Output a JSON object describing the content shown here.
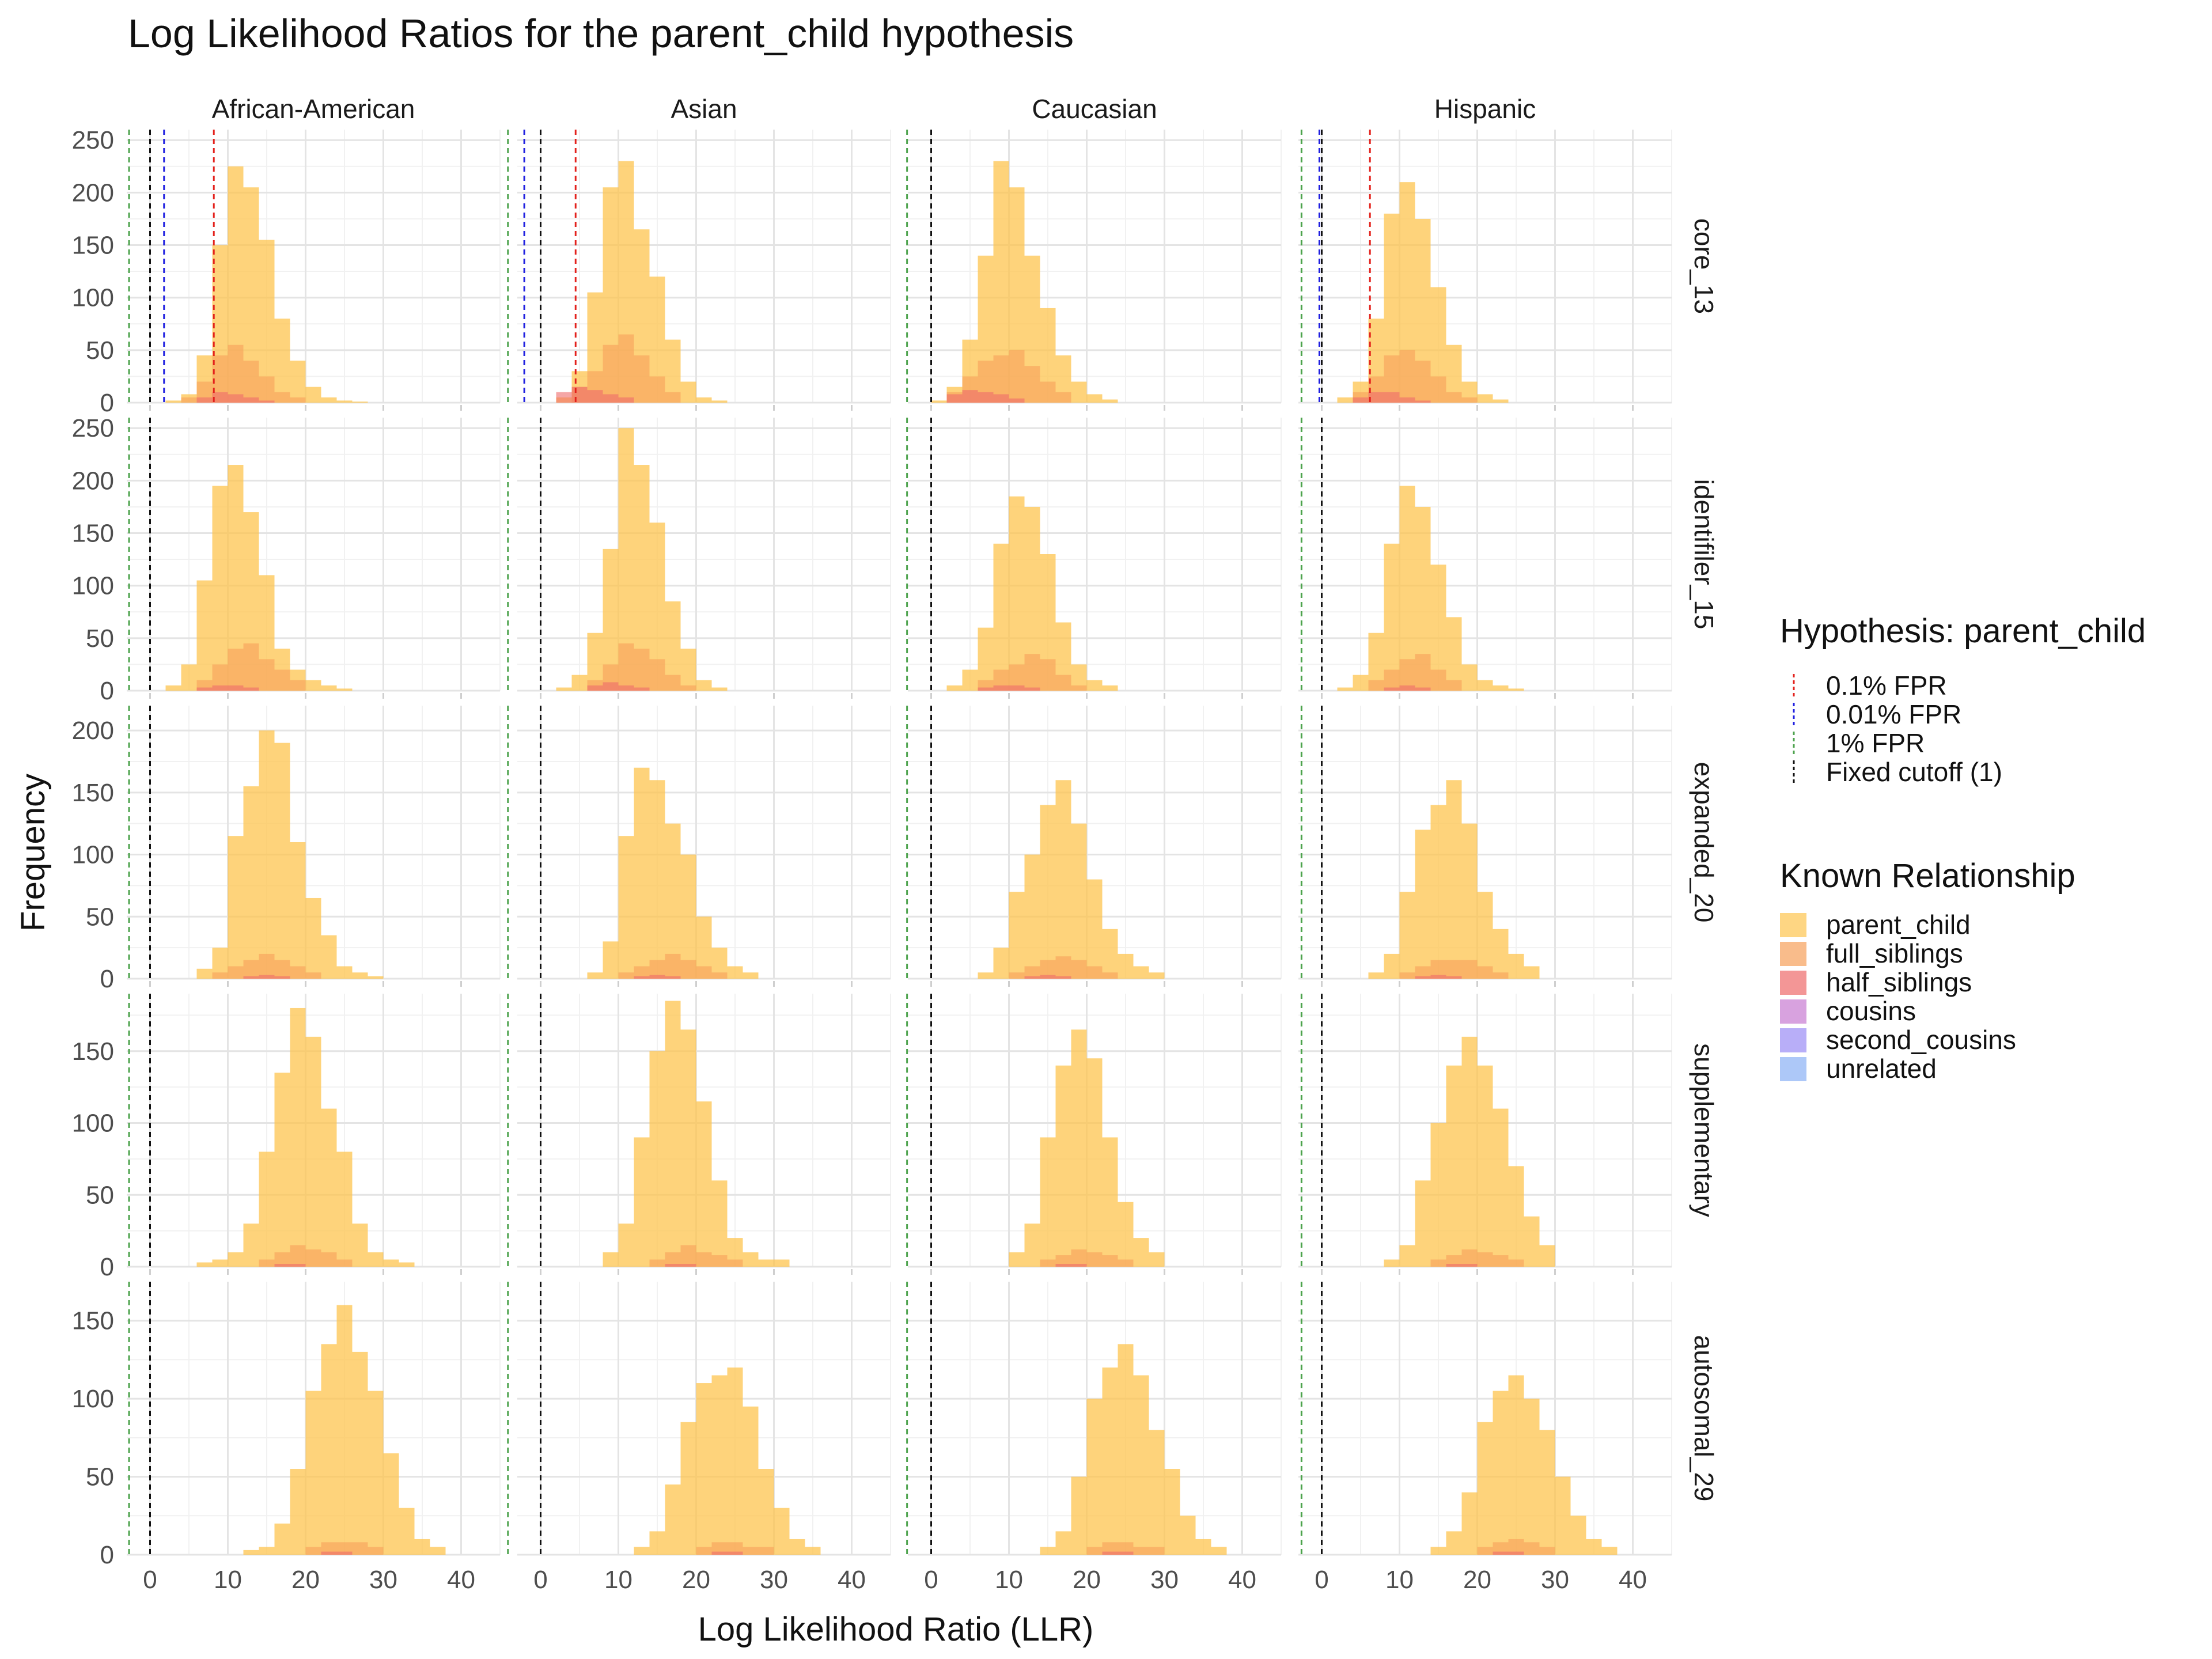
{
  "title": "Log Likelihood Ratios for the parent_child hypothesis",
  "chart_data": {
    "type": "histogram-facet",
    "title": "Log Likelihood Ratios for the parent_child hypothesis",
    "xlabel": "Log Likelihood Ratio (LLR)",
    "ylabel": "Frequency",
    "xlim": [
      -3,
      45
    ],
    "x_ticks": [
      0,
      10,
      20,
      30,
      40
    ],
    "bin_width": 2,
    "columns": [
      "African-American",
      "Asian",
      "Caucasian",
      "Hispanic"
    ],
    "rows": [
      "core_13",
      "identifiler_15",
      "expanded_20",
      "supplementary",
      "autosomal_29"
    ],
    "row_ylim": {
      "core_13": [
        0,
        260
      ],
      "identifiler_15": [
        0,
        260
      ],
      "expanded_20": [
        0,
        220
      ],
      "supplementary": [
        0,
        190
      ],
      "autosomal_29": [
        0,
        175
      ]
    },
    "row_y_ticks": {
      "core_13": [
        0,
        50,
        100,
        150,
        200,
        250
      ],
      "identifiler_15": [
        0,
        50,
        100,
        150,
        200,
        250
      ],
      "expanded_20": [
        0,
        50,
        100,
        150,
        200
      ],
      "supplementary": [
        0,
        50,
        100,
        150
      ],
      "autosomal_29": [
        0,
        50,
        100,
        150
      ]
    },
    "relationships": [
      {
        "name": "parent_child",
        "color": "#FDC44F"
      },
      {
        "name": "full_siblings",
        "color": "#F7A05A"
      },
      {
        "name": "half_siblings",
        "color": "#EE6A6A"
      },
      {
        "name": "cousins",
        "color": "#C77BD2"
      },
      {
        "name": "second_cousins",
        "color": "#9A8CF5"
      },
      {
        "name": "unrelated",
        "color": "#8AB0F5"
      }
    ],
    "histograms": {
      "parent_child": {
        "core_13": {
          "African-American": {
            "start": 2,
            "counts": [
              2,
              8,
              45,
              150,
              225,
              205,
              155,
              80,
              40,
              15,
              5,
              2,
              1
            ]
          },
          "Asian": {
            "start": 2,
            "counts": [
              5,
              30,
              105,
              205,
              230,
              165,
              120,
              60,
              20,
              5,
              2
            ]
          },
          "Caucasian": {
            "start": 0,
            "counts": [
              2,
              15,
              60,
              140,
              230,
              205,
              140,
              90,
              45,
              20,
              8,
              3
            ]
          },
          "Hispanic": {
            "start": 2,
            "counts": [
              5,
              20,
              80,
              180,
              210,
              175,
              110,
              55,
              20,
              8,
              3
            ]
          }
        },
        "identifiler_15": {
          "African-American": {
            "start": 2,
            "counts": [
              5,
              25,
              105,
              195,
              215,
              170,
              110,
              40,
              20,
              10,
              5,
              2
            ]
          },
          "Asian": {
            "start": 2,
            "counts": [
              3,
              15,
              55,
              135,
              250,
              215,
              160,
              85,
              40,
              10,
              3
            ]
          },
          "Caucasian": {
            "start": 2,
            "counts": [
              5,
              20,
              60,
              140,
              185,
              175,
              130,
              65,
              25,
              10,
              5
            ]
          },
          "Hispanic": {
            "start": 2,
            "counts": [
              3,
              15,
              55,
              140,
              195,
              175,
              120,
              70,
              25,
              10,
              5,
              2
            ]
          }
        },
        "expanded_20": {
          "African-American": {
            "start": 6,
            "counts": [
              8,
              25,
              115,
              155,
              200,
              190,
              110,
              65,
              35,
              10,
              5,
              2
            ]
          },
          "Asian": {
            "start": 6,
            "counts": [
              5,
              30,
              115,
              170,
              160,
              125,
              100,
              50,
              25,
              10,
              5
            ]
          },
          "Caucasian": {
            "start": 6,
            "counts": [
              5,
              25,
              70,
              100,
              140,
              160,
              125,
              80,
              40,
              20,
              10,
              5
            ]
          },
          "Hispanic": {
            "start": 6,
            "counts": [
              5,
              20,
              70,
              120,
              140,
              160,
              125,
              70,
              40,
              20,
              10
            ]
          }
        },
        "supplementary": {
          "African-American": {
            "start": 6,
            "counts": [
              3,
              5,
              10,
              30,
              80,
              135,
              180,
              160,
              110,
              80,
              30,
              10,
              5,
              3
            ]
          },
          "Asian": {
            "start": 8,
            "counts": [
              10,
              30,
              90,
              150,
              185,
              165,
              115,
              60,
              20,
              10,
              5,
              5
            ]
          },
          "Caucasian": {
            "start": 10,
            "counts": [
              10,
              30,
              90,
              140,
              165,
              145,
              90,
              45,
              20,
              10
            ]
          },
          "Hispanic": {
            "start": 8,
            "counts": [
              5,
              15,
              60,
              100,
              140,
              160,
              140,
              110,
              70,
              35,
              15
            ]
          }
        },
        "autosomal_29": {
          "African-American": {
            "start": 12,
            "counts": [
              3,
              5,
              20,
              55,
              105,
              135,
              160,
              130,
              105,
              65,
              30,
              10,
              5
            ]
          },
          "Asian": {
            "start": 12,
            "counts": [
              5,
              15,
              45,
              85,
              110,
              115,
              120,
              95,
              55,
              30,
              10,
              5
            ]
          },
          "Caucasian": {
            "start": 14,
            "counts": [
              5,
              15,
              50,
              100,
              120,
              135,
              115,
              80,
              55,
              25,
              10,
              5
            ]
          },
          "Hispanic": {
            "start": 14,
            "counts": [
              5,
              15,
              40,
              85,
              105,
              115,
              100,
              80,
              50,
              25,
              10,
              5
            ]
          }
        }
      },
      "full_siblings": {
        "core_13": {
          "African-American": {
            "start": 4,
            "counts": [
              5,
              20,
              45,
              55,
              40,
              25,
              10,
              5
            ]
          },
          "Asian": {
            "start": 4,
            "counts": [
              15,
              30,
              55,
              65,
              45,
              25,
              10
            ]
          },
          "Caucasian": {
            "start": 2,
            "counts": [
              10,
              25,
              40,
              45,
              50,
              35,
              20,
              10
            ]
          },
          "Hispanic": {
            "start": 4,
            "counts": [
              10,
              25,
              45,
              50,
              40,
              25,
              10,
              5
            ]
          }
        },
        "identifiler_15": {
          "African-American": {
            "start": 6,
            "counts": [
              10,
              25,
              40,
              45,
              30,
              20,
              10
            ]
          },
          "Asian": {
            "start": 6,
            "counts": [
              10,
              25,
              45,
              40,
              30,
              15,
              5
            ]
          },
          "Caucasian": {
            "start": 6,
            "counts": [
              10,
              20,
              25,
              35,
              30,
              15,
              5
            ]
          },
          "Hispanic": {
            "start": 6,
            "counts": [
              10,
              20,
              30,
              35,
              20,
              10
            ]
          }
        },
        "expanded_20": {
          "African-American": {
            "start": 8,
            "counts": [
              5,
              10,
              15,
              20,
              15,
              10,
              5
            ]
          },
          "Asian": {
            "start": 10,
            "counts": [
              5,
              10,
              15,
              20,
              15,
              10,
              5
            ]
          },
          "Caucasian": {
            "start": 10,
            "counts": [
              5,
              10,
              15,
              18,
              15,
              10,
              5
            ]
          },
          "Hispanic": {
            "start": 10,
            "counts": [
              5,
              10,
              15,
              15,
              15,
              10,
              5
            ]
          }
        },
        "supplementary": {
          "African-American": {
            "start": 14,
            "counts": [
              5,
              10,
              15,
              12,
              10,
              5
            ]
          },
          "Asian": {
            "start": 14,
            "counts": [
              5,
              10,
              15,
              10,
              8,
              5
            ]
          },
          "Caucasian": {
            "start": 14,
            "counts": [
              5,
              8,
              12,
              10,
              8,
              5
            ]
          },
          "Hispanic": {
            "start": 14,
            "counts": [
              5,
              8,
              12,
              10,
              8,
              5
            ]
          }
        },
        "autosomal_29": {
          "African-American": {
            "start": 20,
            "counts": [
              5,
              8,
              8,
              8,
              5
            ]
          },
          "Asian": {
            "start": 20,
            "counts": [
              5,
              8,
              8,
              5,
              5
            ]
          },
          "Caucasian": {
            "start": 20,
            "counts": [
              5,
              8,
              8,
              5,
              5
            ]
          },
          "Hispanic": {
            "start": 20,
            "counts": [
              5,
              8,
              10,
              8,
              5
            ]
          }
        }
      },
      "half_siblings": {
        "core_13": {
          "African-American": {
            "start": 6,
            "counts": [
              5,
              10,
              8,
              5,
              2
            ]
          },
          "Asian": {
            "start": 2,
            "counts": [
              10,
              15,
              12,
              8,
              5
            ]
          },
          "Caucasian": {
            "start": 2,
            "counts": [
              8,
              12,
              10,
              8,
              4
            ]
          },
          "Hispanic": {
            "start": 4,
            "counts": [
              5,
              10,
              10,
              5,
              2
            ]
          }
        },
        "identifiler_15": {
          "African-American": {
            "start": 6,
            "counts": [
              3,
              5,
              5,
              3
            ]
          },
          "Asian": {
            "start": 6,
            "counts": [
              5,
              8,
              5,
              3
            ]
          },
          "Caucasian": {
            "start": 6,
            "counts": [
              3,
              5,
              5,
              3
            ]
          },
          "Hispanic": {
            "start": 8,
            "counts": [
              3,
              5,
              3
            ]
          }
        },
        "expanded_20": {
          "African-American": {
            "start": 12,
            "counts": [
              2,
              3,
              2
            ]
          },
          "Asian": {
            "start": 12,
            "counts": [
              2,
              3,
              2
            ]
          },
          "Caucasian": {
            "start": 12,
            "counts": [
              2,
              3,
              2
            ]
          },
          "Hispanic": {
            "start": 12,
            "counts": [
              2,
              3,
              2
            ]
          }
        },
        "supplementary": {
          "African-American": {
            "start": 16,
            "counts": [
              2,
              2
            ]
          },
          "Asian": {
            "start": 16,
            "counts": [
              2,
              2
            ]
          },
          "Caucasian": {
            "start": 16,
            "counts": [
              2,
              2
            ]
          },
          "Hispanic": {
            "start": 16,
            "counts": [
              2,
              2
            ]
          }
        },
        "autosomal_29": {
          "African-American": {
            "start": 22,
            "counts": [
              2,
              2
            ]
          },
          "Asian": {
            "start": 22,
            "counts": [
              2,
              2
            ]
          },
          "Caucasian": {
            "start": 22,
            "counts": [
              2,
              2
            ]
          },
          "Hispanic": {
            "start": 22,
            "counts": [
              2,
              2
            ]
          }
        }
      }
    },
    "cutoff_lines": {
      "legend_title": "Hypothesis: parent_child",
      "types": [
        {
          "name": "0.1% FPR",
          "color": "#E3211C"
        },
        {
          "name": "0.01% FPR",
          "color": "#1F1FE0"
        },
        {
          "name": "1% FPR",
          "color": "#4DA34D"
        },
        {
          "name": "Fixed cutoff (1)",
          "color": "#111111"
        }
      ],
      "values": {
        "core_13": {
          "African-American": {
            "0.1% FPR": 8.2,
            "0.01% FPR": 1.8,
            "1% FPR": -2.7,
            "Fixed cutoff (1)": 0
          },
          "Asian": {
            "0.1% FPR": 4.5,
            "0.01% FPR": -2.1,
            "1% FPR": -4.2,
            "Fixed cutoff (1)": 0
          },
          "Caucasian": {
            "1% FPR": -3.1,
            "Fixed cutoff (1)": 0
          },
          "Hispanic": {
            "0.1% FPR": 6.2,
            "0.01% FPR": -0.3,
            "1% FPR": -2.6,
            "Fixed cutoff (1)": 0
          }
        },
        "identifiler_15": {
          "African-American": {
            "1% FPR": -2.7,
            "Fixed cutoff (1)": 0
          },
          "Asian": {
            "1% FPR": -4.2,
            "Fixed cutoff (1)": 0
          },
          "Caucasian": {
            "1% FPR": -3.1,
            "Fixed cutoff (1)": 0
          },
          "Hispanic": {
            "1% FPR": -2.6,
            "Fixed cutoff (1)": 0
          }
        },
        "expanded_20": {
          "African-American": {
            "1% FPR": -2.7,
            "Fixed cutoff (1)": 0
          },
          "Asian": {
            "1% FPR": -4.2,
            "Fixed cutoff (1)": 0
          },
          "Caucasian": {
            "1% FPR": -3.1,
            "Fixed cutoff (1)": 0
          },
          "Hispanic": {
            "1% FPR": -2.6,
            "Fixed cutoff (1)": 0
          }
        },
        "supplementary": {
          "African-American": {
            "1% FPR": -2.7,
            "Fixed cutoff (1)": 0
          },
          "Asian": {
            "1% FPR": -4.2,
            "Fixed cutoff (1)": 0
          },
          "Caucasian": {
            "1% FPR": -3.1,
            "Fixed cutoff (1)": 0
          },
          "Hispanic": {
            "1% FPR": -2.6,
            "Fixed cutoff (1)": 0
          }
        },
        "autosomal_29": {
          "African-American": {
            "1% FPR": -2.7,
            "Fixed cutoff (1)": 0
          },
          "Asian": {
            "1% FPR": -4.2,
            "Fixed cutoff (1)": 0
          },
          "Caucasian": {
            "1% FPR": -3.1,
            "Fixed cutoff (1)": 0
          },
          "Hispanic": {
            "1% FPR": -2.6,
            "Fixed cutoff (1)": 0
          }
        }
      }
    },
    "legend_relationship_title": "Known Relationship",
    "legend_position": "right"
  }
}
